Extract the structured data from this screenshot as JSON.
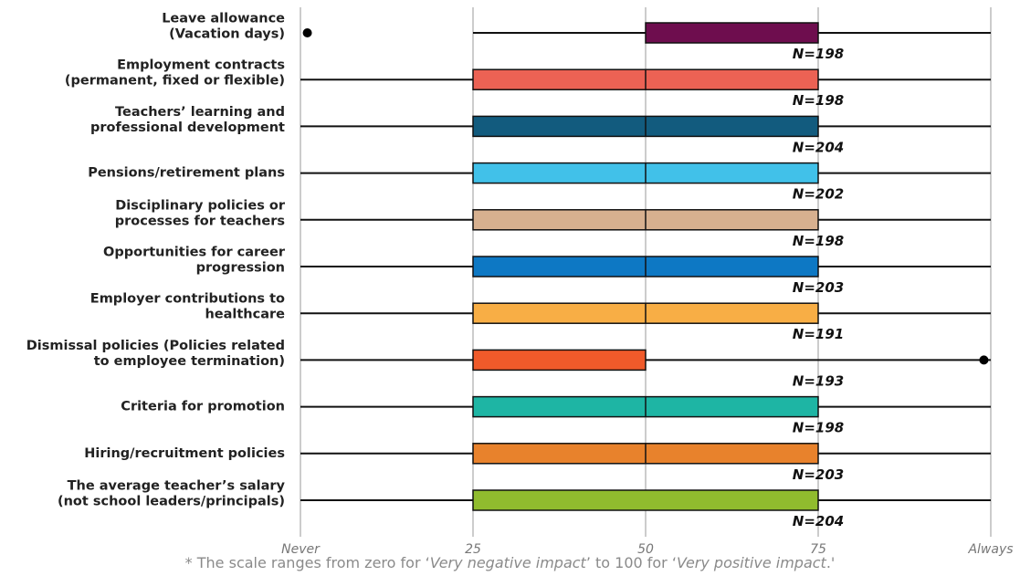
{
  "chart_data": {
    "type": "boxplot",
    "x_ticks": [
      {
        "value": 0,
        "label": "Never"
      },
      {
        "value": 25,
        "label": "25"
      },
      {
        "value": 50,
        "label": "50"
      },
      {
        "value": 75,
        "label": "75"
      },
      {
        "value": 100,
        "label": "Always"
      }
    ],
    "xlim": [
      0,
      100
    ],
    "grid": "vertical",
    "rows": [
      {
        "label": "Leave allowance\n(Vacation days)",
        "whisker_low": 25,
        "q1": 50,
        "median": 50,
        "q3": 75,
        "whisker_high": 100,
        "outliers": [
          1
        ],
        "n_label": "N=198",
        "color": "#6E0D4E"
      },
      {
        "label": "Employment contracts\n(permanent, fixed or flexible)",
        "whisker_low": 0,
        "q1": 25,
        "median": 50,
        "q3": 75,
        "whisker_high": 100,
        "outliers": [],
        "n_label": "N=198",
        "color": "#EC6254"
      },
      {
        "label": "Teachers’ learning and\nprofessional development",
        "whisker_low": 0,
        "q1": 25,
        "median": 50,
        "q3": 75,
        "whisker_high": 100,
        "outliers": [],
        "n_label": "N=204",
        "color": "#125B7E"
      },
      {
        "label": "Pensions/retirement plans",
        "whisker_low": 0,
        "q1": 25,
        "median": 50,
        "q3": 75,
        "whisker_high": 100,
        "outliers": [],
        "n_label": "N=202",
        "color": "#41C1E9"
      },
      {
        "label": "Disciplinary policies or\nprocesses for teachers",
        "whisker_low": 0,
        "q1": 25,
        "median": 50,
        "q3": 75,
        "whisker_high": 100,
        "outliers": [],
        "n_label": "N=198",
        "color": "#D7B08F"
      },
      {
        "label": "Opportunities for career\nprogression",
        "whisker_low": 0,
        "q1": 25,
        "median": 50,
        "q3": 75,
        "whisker_high": 100,
        "outliers": [],
        "n_label": "N=203",
        "color": "#0D78C4"
      },
      {
        "label": "Employer contributions to\nhealthcare",
        "whisker_low": 0,
        "q1": 25,
        "median": 50,
        "q3": 75,
        "whisker_high": 100,
        "outliers": [],
        "n_label": "N=191",
        "color": "#F8AE45"
      },
      {
        "label": "Dismissal policies (Policies related\nto employee termination)",
        "whisker_low": 0,
        "q1": 25,
        "median": 50,
        "q3": 50,
        "whisker_high": 100,
        "outliers": [
          99
        ],
        "n_label": "N=193",
        "color": "#F05A2A"
      },
      {
        "label": "Criteria for promotion",
        "whisker_low": 0,
        "q1": 25,
        "median": 50,
        "q3": 75,
        "whisker_high": 100,
        "outliers": [],
        "n_label": "N=198",
        "color": "#1EB5A4"
      },
      {
        "label": "Hiring/recruitment policies",
        "whisker_low": 0,
        "q1": 25,
        "median": 50,
        "q3": 75,
        "whisker_high": 100,
        "outliers": [],
        "n_label": "N=203",
        "color": "#E8822C"
      },
      {
        "label": "The average teacher’s salary\n(not school leaders/principals)",
        "whisker_low": 0,
        "q1": 25,
        "median": 75,
        "q3": 75,
        "whisker_high": 100,
        "outliers": [],
        "n_label": "N=204",
        "color": "#90BC2E"
      }
    ]
  },
  "footnote": {
    "prefix": "* The scale ranges from zero for ‘",
    "neg": "Very negative impact",
    "middle": "’ to 100 for ‘",
    "pos": "Very positive impact",
    "suffix": ".'"
  }
}
